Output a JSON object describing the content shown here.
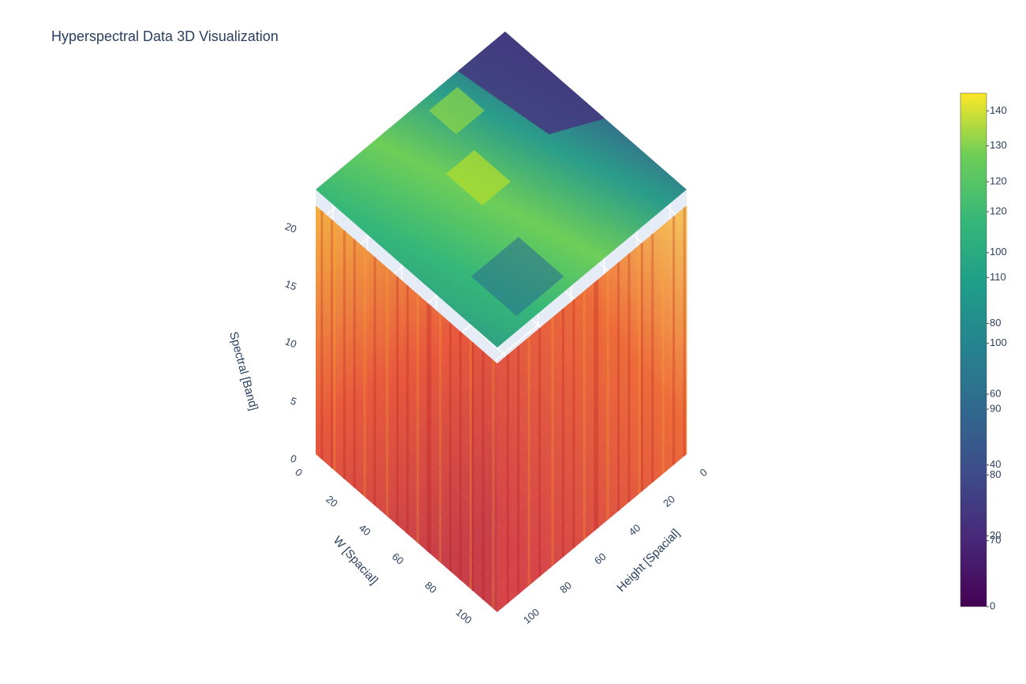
{
  "chart_data": {
    "type": "volume",
    "title": "Hyperspectral Data 3D Visualization",
    "colorscale": "Viridis",
    "xaxis": {
      "title": "W [Spacial]",
      "lim": [
        0,
        110
      ],
      "ticks": [
        0,
        20,
        40,
        60,
        80,
        100
      ]
    },
    "yaxis": {
      "title": "Height [Spacial]",
      "lim": [
        0,
        110
      ],
      "ticks": [
        0,
        20,
        40,
        60,
        80,
        100
      ]
    },
    "zaxis": {
      "title": "Spectral [Band]",
      "lim": [
        0,
        23
      ],
      "ticks": [
        0,
        5,
        10,
        15,
        20
      ]
    },
    "colorbars": [
      {
        "lim": [
          0,
          145
        ],
        "ticks": [
          0,
          20,
          40,
          60,
          80,
          100,
          120,
          140
        ]
      },
      {
        "lim": [
          60,
          138
        ],
        "ticks": [
          70,
          80,
          90,
          100,
          110,
          120,
          130
        ]
      }
    ]
  }
}
